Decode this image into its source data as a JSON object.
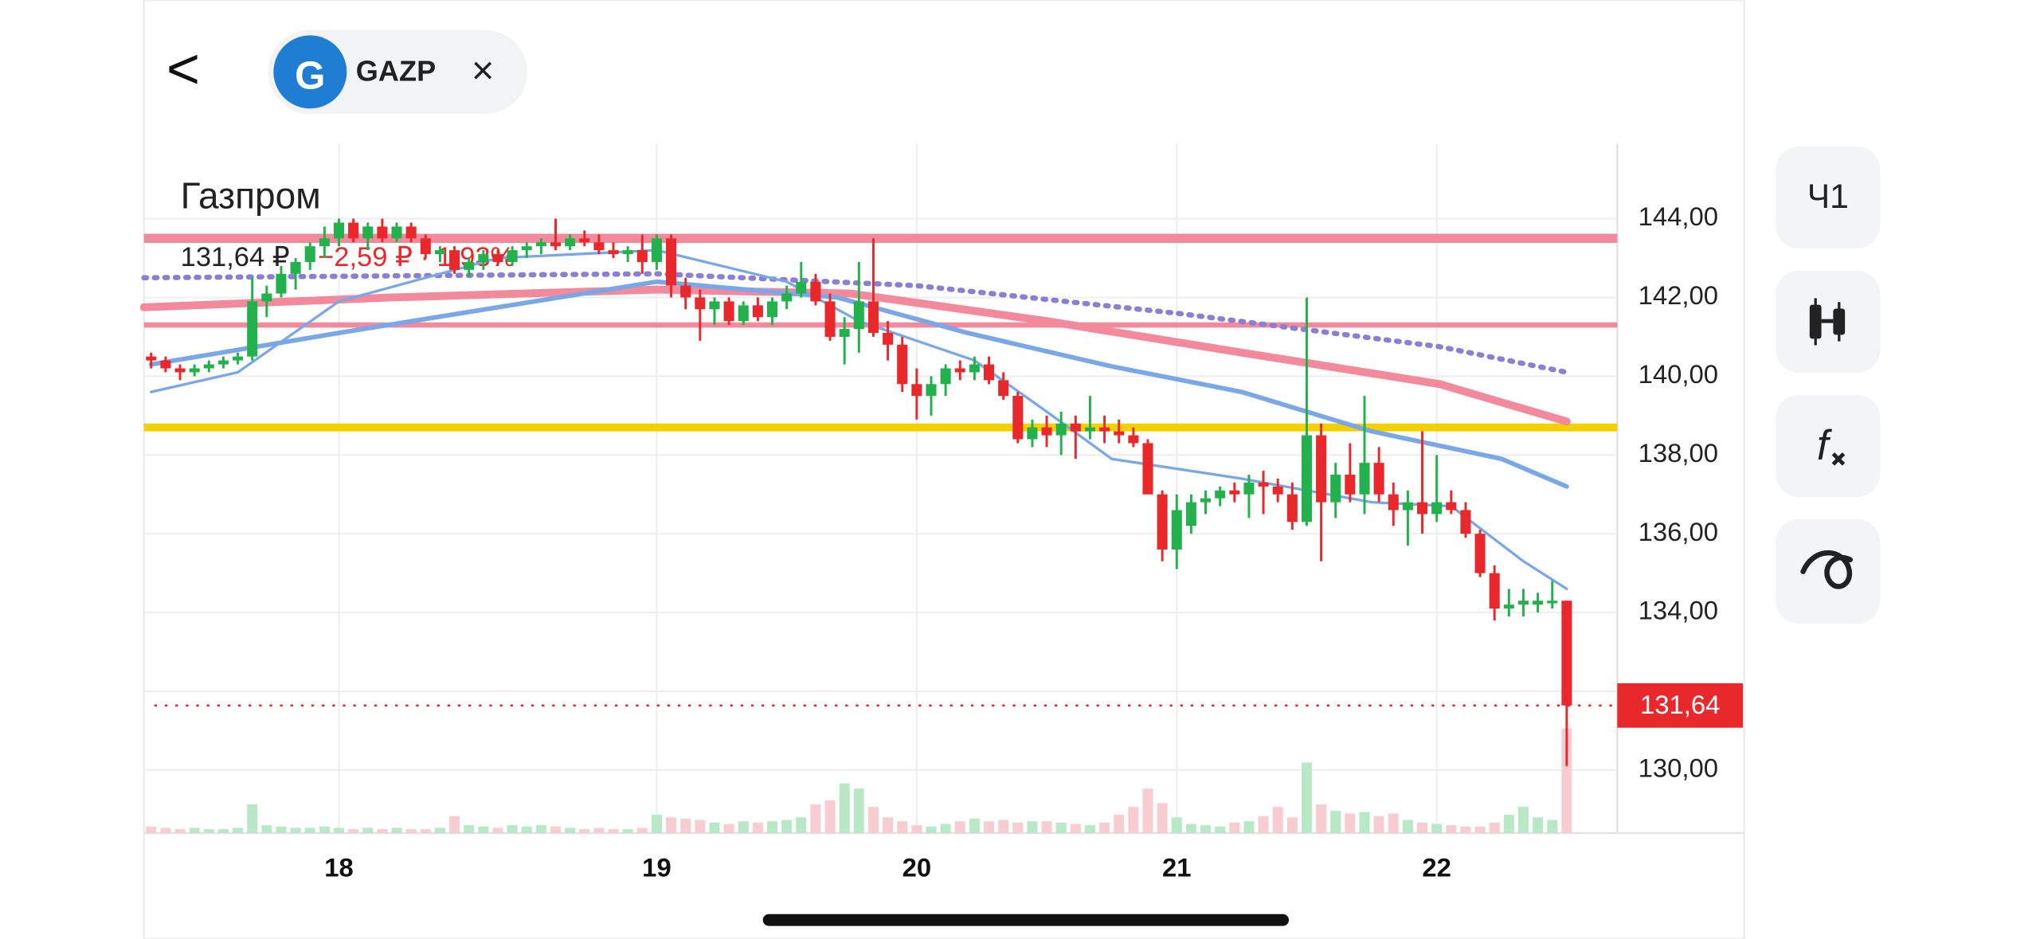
{
  "header": {
    "back": "<",
    "ticker": "GAZP",
    "close": "×",
    "logo": "G"
  },
  "toolbar": {
    "interval": "Ч1"
  },
  "chart_data": {
    "type": "candlestick",
    "title": "Газпром",
    "price_text": "131,64 ₽",
    "change_text": "−2,59 ₽ · 1,93%",
    "up_color": "#22b14c",
    "down_color": "#e8282b",
    "grid": true,
    "xlim": [
      -0.5,
      101.5
    ],
    "xticks": [
      {
        "value": 13,
        "label": "18"
      },
      {
        "value": 35,
        "label": "19"
      },
      {
        "value": 53,
        "label": "20"
      },
      {
        "value": 71,
        "label": "21"
      },
      {
        "value": 89,
        "label": "22"
      }
    ],
    "ylim": [
      128.4,
      145.9
    ],
    "yticks": [
      {
        "value": 144,
        "label": "144,00"
      },
      {
        "value": 142,
        "label": "142,00"
      },
      {
        "value": 140,
        "label": "140,00"
      },
      {
        "value": 138,
        "label": "138,00"
      },
      {
        "value": 136,
        "label": "136,00"
      },
      {
        "value": 134,
        "label": "134,00"
      },
      {
        "value": 132,
        "label": null
      },
      {
        "value": 130,
        "label": "130,00"
      }
    ],
    "price_label": {
      "value": 131.64,
      "label": "131,64"
    },
    "candles": [
      [
        140.5,
        140.6,
        140.2,
        140.4
      ],
      [
        140.4,
        140.5,
        140.1,
        140.2
      ],
      [
        140.2,
        140.3,
        139.9,
        140.1
      ],
      [
        140.1,
        140.3,
        140.0,
        140.2
      ],
      [
        140.2,
        140.4,
        140.1,
        140.3
      ],
      [
        140.3,
        140.5,
        140.2,
        140.4
      ],
      [
        140.4,
        140.6,
        140.3,
        140.5
      ],
      [
        140.5,
        142.5,
        140.4,
        141.9
      ],
      [
        141.9,
        142.3,
        141.5,
        142.1
      ],
      [
        142.1,
        142.8,
        142.0,
        142.6
      ],
      [
        142.6,
        143.0,
        142.2,
        142.9
      ],
      [
        142.9,
        143.4,
        142.7,
        143.3
      ],
      [
        143.3,
        143.8,
        143.0,
        143.5
      ],
      [
        143.5,
        144.0,
        143.3,
        143.9
      ],
      [
        143.9,
        144.0,
        143.4,
        143.5
      ],
      [
        143.5,
        143.9,
        143.2,
        143.8
      ],
      [
        143.8,
        144.0,
        143.4,
        143.5
      ],
      [
        143.5,
        143.9,
        143.4,
        143.8
      ],
      [
        143.8,
        143.9,
        143.4,
        143.5
      ],
      [
        143.5,
        143.6,
        143.0,
        143.1
      ],
      [
        143.1,
        143.3,
        142.9,
        143.2
      ],
      [
        143.2,
        143.3,
        142.6,
        142.7
      ],
      [
        142.7,
        143.0,
        142.5,
        142.9
      ],
      [
        142.9,
        143.2,
        142.7,
        143.1
      ],
      [
        143.1,
        143.2,
        142.8,
        142.9
      ],
      [
        142.9,
        143.3,
        142.8,
        143.2
      ],
      [
        143.2,
        143.4,
        143.0,
        143.3
      ],
      [
        143.3,
        143.5,
        143.1,
        143.4
      ],
      [
        143.4,
        144.0,
        143.2,
        143.3
      ],
      [
        143.3,
        143.6,
        143.2,
        143.5
      ],
      [
        143.5,
        143.7,
        143.3,
        143.4
      ],
      [
        143.4,
        143.6,
        143.1,
        143.2
      ],
      [
        143.2,
        143.4,
        143.0,
        143.1
      ],
      [
        143.1,
        143.3,
        142.9,
        143.2
      ],
      [
        143.2,
        143.6,
        142.6,
        142.9
      ],
      [
        142.9,
        143.6,
        142.7,
        143.5
      ],
      [
        143.5,
        143.6,
        142.0,
        142.3
      ],
      [
        142.3,
        142.5,
        141.7,
        142.0
      ],
      [
        142.0,
        142.2,
        140.9,
        141.7
      ],
      [
        141.7,
        142.0,
        141.3,
        141.9
      ],
      [
        141.9,
        142.0,
        141.3,
        141.4
      ],
      [
        141.4,
        141.9,
        141.3,
        141.8
      ],
      [
        141.8,
        142.0,
        141.4,
        141.5
      ],
      [
        141.5,
        142.0,
        141.3,
        141.9
      ],
      [
        141.9,
        142.3,
        141.7,
        142.1
      ],
      [
        142.1,
        142.9,
        142.0,
        142.4
      ],
      [
        142.4,
        142.6,
        141.8,
        141.9
      ],
      [
        141.9,
        142.1,
        140.9,
        141.0
      ],
      [
        141.0,
        141.5,
        140.3,
        141.2
      ],
      [
        141.2,
        142.9,
        140.6,
        141.9
      ],
      [
        141.9,
        143.5,
        141.0,
        141.1
      ],
      [
        141.1,
        141.4,
        140.4,
        140.8
      ],
      [
        140.8,
        141.0,
        139.6,
        139.8
      ],
      [
        139.8,
        140.2,
        138.9,
        139.5
      ],
      [
        139.5,
        140.0,
        139.0,
        139.8
      ],
      [
        139.8,
        140.3,
        139.5,
        140.2
      ],
      [
        140.2,
        140.4,
        139.9,
        140.1
      ],
      [
        140.1,
        140.5,
        139.9,
        140.3
      ],
      [
        140.3,
        140.5,
        139.8,
        139.9
      ],
      [
        139.9,
        140.1,
        139.4,
        139.5
      ],
      [
        139.5,
        139.6,
        138.3,
        138.4
      ],
      [
        138.4,
        138.9,
        138.2,
        138.7
      ],
      [
        138.7,
        139.0,
        138.2,
        138.5
      ],
      [
        138.5,
        139.1,
        138.0,
        138.8
      ],
      [
        138.8,
        139.0,
        137.9,
        138.6
      ],
      [
        138.6,
        139.5,
        138.4,
        138.7
      ],
      [
        138.7,
        139.0,
        138.3,
        138.6
      ],
      [
        138.6,
        138.9,
        138.3,
        138.5
      ],
      [
        138.5,
        138.7,
        138.2,
        138.3
      ],
      [
        138.3,
        138.4,
        137.0,
        137.0
      ],
      [
        137.0,
        137.1,
        135.3,
        135.6
      ],
      [
        135.6,
        137.0,
        135.1,
        136.6
      ],
      [
        136.2,
        137.0,
        136.0,
        136.8
      ],
      [
        136.8,
        137.1,
        136.5,
        136.9
      ],
      [
        136.9,
        137.2,
        136.7,
        137.1
      ],
      [
        137.1,
        137.3,
        136.8,
        137.0
      ],
      [
        137.0,
        137.5,
        136.4,
        137.3
      ],
      [
        137.3,
        137.6,
        136.5,
        137.2
      ],
      [
        137.2,
        137.4,
        136.8,
        137.0
      ],
      [
        137.0,
        137.3,
        136.1,
        136.3
      ],
      [
        136.3,
        142.0,
        136.2,
        138.5
      ],
      [
        138.5,
        138.8,
        135.3,
        136.8
      ],
      [
        136.8,
        137.8,
        136.4,
        137.5
      ],
      [
        137.5,
        138.3,
        136.8,
        137.0
      ],
      [
        137.0,
        139.5,
        136.5,
        137.8
      ],
      [
        137.8,
        138.2,
        136.8,
        137.0
      ],
      [
        137.0,
        137.3,
        136.2,
        136.6
      ],
      [
        136.6,
        137.1,
        135.7,
        136.8
      ],
      [
        136.8,
        138.6,
        136.0,
        136.5
      ],
      [
        136.5,
        138.0,
        136.3,
        136.8
      ],
      [
        136.8,
        137.1,
        136.5,
        136.6
      ],
      [
        136.6,
        136.8,
        135.9,
        136.0
      ],
      [
        136.0,
        136.1,
        134.9,
        135.0
      ],
      [
        135.0,
        135.2,
        133.8,
        134.1
      ],
      [
        134.1,
        134.6,
        133.9,
        134.2
      ],
      [
        134.2,
        134.6,
        133.9,
        134.3
      ],
      [
        134.2,
        134.5,
        134.0,
        134.3
      ],
      [
        134.3,
        134.8,
        134.1,
        134.3
      ],
      [
        134.3,
        134.3,
        130.1,
        131.64
      ]
    ],
    "volume": [
      5,
      4,
      3,
      4,
      3,
      3,
      4,
      22,
      6,
      5,
      4,
      4,
      5,
      4,
      3,
      4,
      3,
      4,
      3,
      3,
      4,
      13,
      6,
      5,
      4,
      6,
      5,
      6,
      5,
      4,
      3,
      4,
      3,
      3,
      4,
      14,
      12,
      11,
      10,
      8,
      7,
      9,
      8,
      9,
      10,
      12,
      22,
      25,
      38,
      34,
      20,
      12,
      9,
      6,
      5,
      7,
      9,
      11,
      9,
      10,
      8,
      9,
      9,
      8,
      7,
      6,
      8,
      14,
      20,
      34,
      23,
      12,
      7,
      6,
      5,
      8,
      9,
      13,
      20,
      12,
      54,
      22,
      17,
      15,
      16,
      13,
      15,
      10,
      8,
      7,
      6,
      5,
      5,
      8,
      14,
      20,
      12,
      10,
      80
    ],
    "volume_lim": [
      0,
      100
    ],
    "volume_up_color": "#b9e8c7",
    "volume_down_color": "#f8cdd1",
    "levels": [
      {
        "value": 143.5,
        "color": "#f28a9c"
      },
      {
        "value": 141.3,
        "color": "#f28a9c"
      },
      {
        "value": 138.7,
        "color": "#f5d000"
      }
    ],
    "series": [
      {
        "color": "#8b7fd4",
        "style": "dotted",
        "x": [
          -0.5,
          35,
          53,
          71,
          89.2,
          98
        ],
        "values": [
          142.5,
          142.6,
          142.3,
          141.6,
          140.75,
          140.1
        ]
      },
      {
        "color": "#f28a9c",
        "style": "thick",
        "x": [
          -0.5,
          16.7,
          35,
          48.4,
          62,
          75.5,
          89.2,
          98
        ],
        "values": [
          141.75,
          142.0,
          142.2,
          142.1,
          141.4,
          140.6,
          139.8,
          138.85
        ]
      },
      {
        "color": "#7aa7e8",
        "style": "medium",
        "x": [
          0,
          13,
          35,
          47.5,
          56.5,
          66.5,
          75.5,
          84.5,
          93.5,
          98
        ],
        "values": [
          140.3,
          141.1,
          142.4,
          142.0,
          141.1,
          140.25,
          139.6,
          138.6,
          137.9,
          137.2
        ]
      },
      {
        "color": "#7aa7e8",
        "style": "thin",
        "x": [
          0,
          6,
          13,
          24,
          35,
          44,
          49,
          57,
          62,
          66.5,
          75.5,
          84.5,
          90,
          95,
          98
        ],
        "values": [
          139.6,
          140.1,
          141.9,
          143.0,
          143.2,
          142.4,
          141.4,
          140.4,
          139.1,
          137.9,
          137.4,
          136.8,
          136.7,
          135.3,
          134.6
        ]
      }
    ]
  }
}
